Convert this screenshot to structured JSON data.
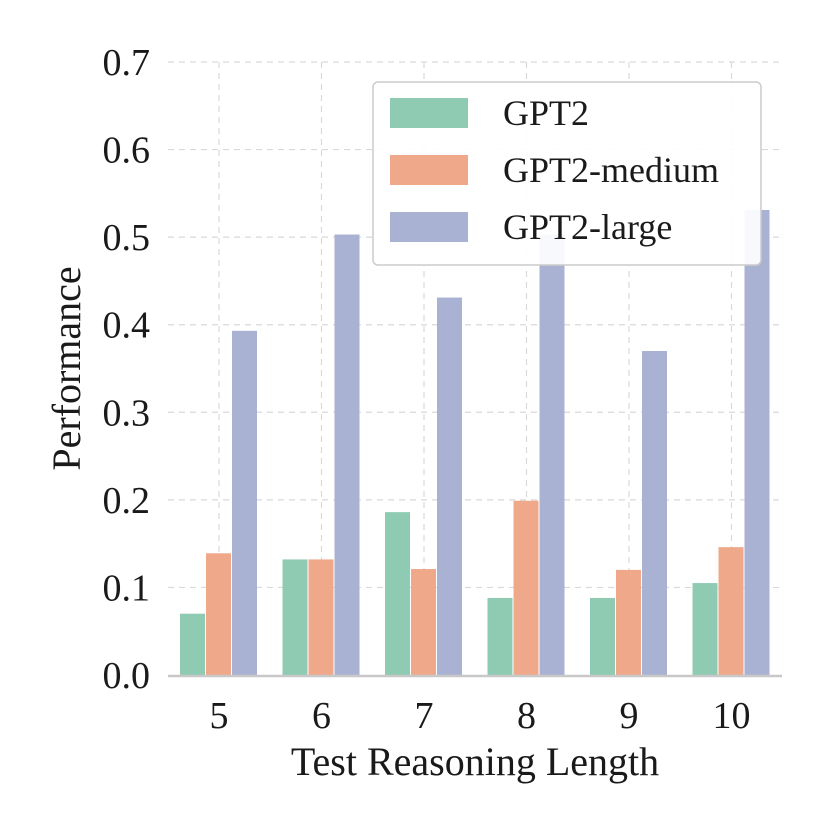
{
  "colors": {
    "GPT2": "#8fcbb2",
    "GPT2-medium": "#f0a88b",
    "GPT2-large": "#aab2d3",
    "grid": "#d9d9d9",
    "axis": "#c8c8c8",
    "legend_border": "#cccccc"
  },
  "chart_data": {
    "type": "bar",
    "title": "",
    "xlabel": "Test Reasoning Length",
    "ylabel": "Performance",
    "categories": [
      "5",
      "6",
      "7",
      "8",
      "9",
      "10"
    ],
    "ylim": [
      0.0,
      0.7
    ],
    "yticks": [
      "0.0",
      "0.1",
      "0.2",
      "0.3",
      "0.4",
      "0.5",
      "0.6",
      "0.7"
    ],
    "grid": true,
    "legend_position": "top-right",
    "series": [
      {
        "name": "GPT2",
        "values": [
          0.07,
          0.132,
          0.186,
          0.088,
          0.088,
          0.105
        ]
      },
      {
        "name": "GPT2-medium",
        "values": [
          0.139,
          0.132,
          0.121,
          0.199,
          0.12,
          0.146
        ]
      },
      {
        "name": "GPT2-large",
        "values": [
          0.393,
          0.503,
          0.431,
          0.503,
          0.37,
          0.531
        ]
      }
    ]
  }
}
